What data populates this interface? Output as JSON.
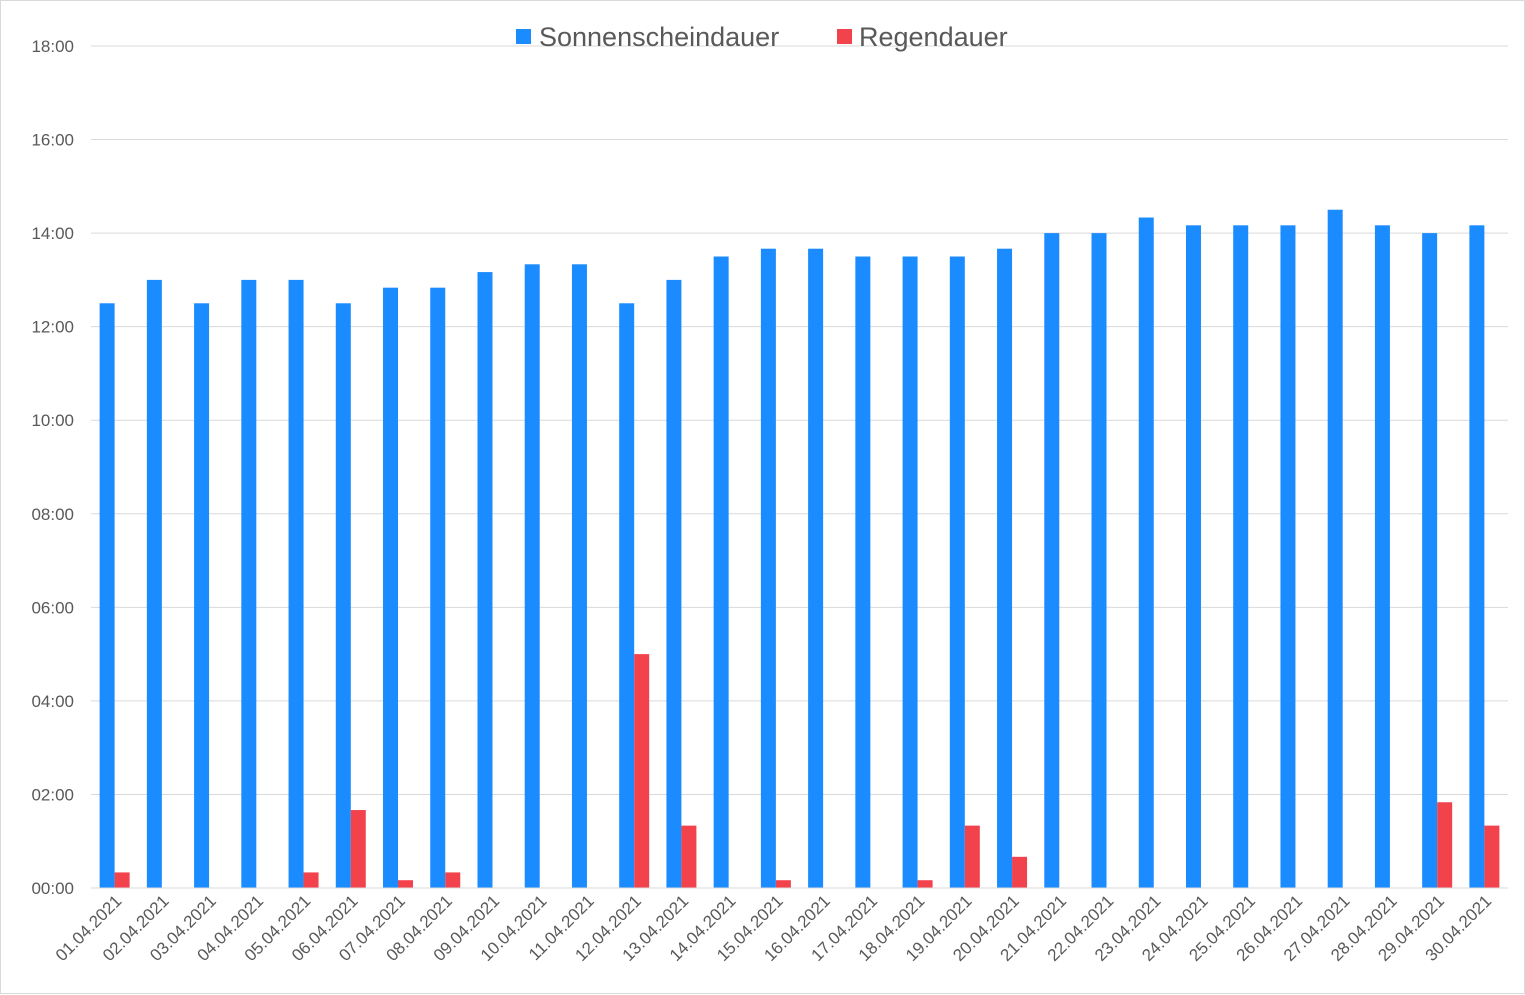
{
  "chart_data": {
    "type": "bar",
    "title": "",
    "xlabel": "",
    "ylabel": "",
    "categories": [
      "01.04.2021",
      "02.04.2021",
      "03.04.2021",
      "04.04.2021",
      "05.04.2021",
      "06.04.2021",
      "07.04.2021",
      "08.04.2021",
      "09.04.2021",
      "10.04.2021",
      "11.04.2021",
      "12.04.2021",
      "13.04.2021",
      "14.04.2021",
      "15.04.2021",
      "16.04.2021",
      "17.04.2021",
      "18.04.2021",
      "19.04.2021",
      "20.04.2021",
      "21.04.2021",
      "22.04.2021",
      "23.04.2021",
      "24.04.2021",
      "25.04.2021",
      "26.04.2021",
      "27.04.2021",
      "28.04.2021",
      "29.04.2021",
      "30.04.2021"
    ],
    "series": [
      {
        "name": "Sonnenscheindauer",
        "color": "#1a8cff",
        "values": [
          "12:30",
          "13:00",
          "12:30",
          "13:00",
          "13:00",
          "12:30",
          "12:50",
          "12:50",
          "13:10",
          "13:20",
          "13:20",
          "12:30",
          "13:00",
          "13:30",
          "13:40",
          "13:40",
          "13:30",
          "13:30",
          "13:30",
          "13:40",
          "14:00",
          "14:00",
          "14:20",
          "14:10",
          "14:10",
          "14:10",
          "14:30",
          "14:10",
          "14:00",
          "14:10"
        ]
      },
      {
        "name": "Regendauer",
        "color": "#f2434d",
        "values": [
          "00:20",
          "00:00",
          "00:00",
          "00:00",
          "00:20",
          "01:40",
          "00:10",
          "00:20",
          "00:00",
          "00:00",
          "00:00",
          "05:00",
          "01:20",
          "00:00",
          "00:10",
          "00:00",
          "00:00",
          "00:10",
          "01:20",
          "00:40",
          "00:00",
          "00:00",
          "00:00",
          "00:00",
          "00:00",
          "00:00",
          "00:00",
          "00:00",
          "01:50",
          "01:20"
        ]
      }
    ],
    "ylim": [
      "00:00",
      "18:00"
    ],
    "yticks": [
      "00:00",
      "02:00",
      "04:00",
      "06:00",
      "08:00",
      "10:00",
      "12:00",
      "14:00",
      "16:00",
      "18:00"
    ],
    "grid": true,
    "legend_position": "top"
  }
}
